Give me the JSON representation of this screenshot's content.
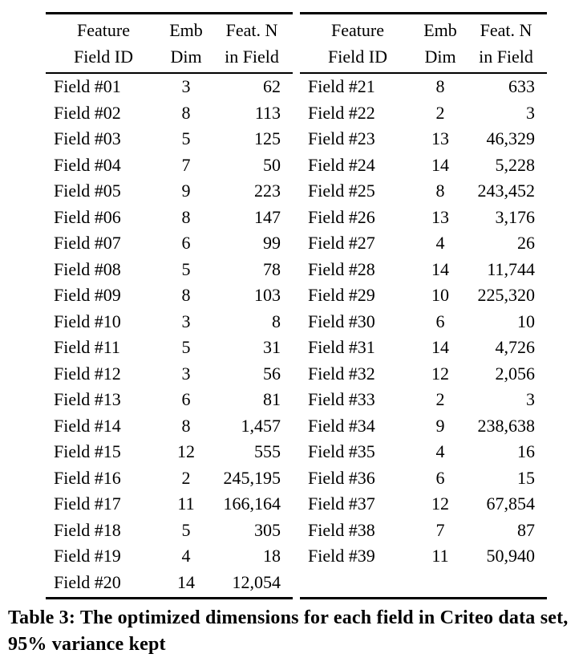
{
  "caption": "Table 3: The optimized dimensions for each field in Criteo data set, 95% variance kept",
  "tables": [
    {
      "headers": [
        {
          "line1": "Feature",
          "line2": "Field ID"
        },
        {
          "line1": "Emb",
          "line2": "Dim"
        },
        {
          "line1": "Feat. N",
          "line2": "in Field"
        }
      ],
      "rows": [
        [
          "Field #01",
          "3",
          "62"
        ],
        [
          "Field #02",
          "8",
          "113"
        ],
        [
          "Field #03",
          "5",
          "125"
        ],
        [
          "Field #04",
          "7",
          "50"
        ],
        [
          "Field #05",
          "9",
          "223"
        ],
        [
          "Field #06",
          "8",
          "147"
        ],
        [
          "Field #07",
          "6",
          "99"
        ],
        [
          "Field #08",
          "5",
          "78"
        ],
        [
          "Field #09",
          "8",
          "103"
        ],
        [
          "Field #10",
          "3",
          "8"
        ],
        [
          "Field #11",
          "5",
          "31"
        ],
        [
          "Field #12",
          "3",
          "56"
        ],
        [
          "Field #13",
          "6",
          "81"
        ],
        [
          "Field #14",
          "8",
          "1,457"
        ],
        [
          "Field #15",
          "12",
          "555"
        ],
        [
          "Field #16",
          "2",
          "245,195"
        ],
        [
          "Field #17",
          "11",
          "166,164"
        ],
        [
          "Field #18",
          "5",
          "305"
        ],
        [
          "Field #19",
          "4",
          "18"
        ],
        [
          "Field #20",
          "14",
          "12,054"
        ]
      ]
    },
    {
      "headers": [
        {
          "line1": "Feature",
          "line2": "Field ID"
        },
        {
          "line1": "Emb",
          "line2": "Dim"
        },
        {
          "line1": "Feat. N",
          "line2": "in Field"
        }
      ],
      "rows": [
        [
          "Field #21",
          "8",
          "633"
        ],
        [
          "Field #22",
          "2",
          "3"
        ],
        [
          "Field #23",
          "13",
          "46,329"
        ],
        [
          "Field #24",
          "14",
          "5,228"
        ],
        [
          "Field #25",
          "8",
          "243,452"
        ],
        [
          "Field #26",
          "13",
          "3,176"
        ],
        [
          "Field #27",
          "4",
          "26"
        ],
        [
          "Field #28",
          "14",
          "11,744"
        ],
        [
          "Field #29",
          "10",
          "225,320"
        ],
        [
          "Field #30",
          "6",
          "10"
        ],
        [
          "Field #31",
          "14",
          "4,726"
        ],
        [
          "Field #32",
          "12",
          "2,056"
        ],
        [
          "Field #33",
          "2",
          "3"
        ],
        [
          "Field #34",
          "9",
          "238,638"
        ],
        [
          "Field #35",
          "4",
          "16"
        ],
        [
          "Field #36",
          "6",
          "15"
        ],
        [
          "Field #37",
          "12",
          "67,854"
        ],
        [
          "Field #38",
          "7",
          "87"
        ],
        [
          "Field #39",
          "11",
          "50,940"
        ]
      ]
    }
  ]
}
